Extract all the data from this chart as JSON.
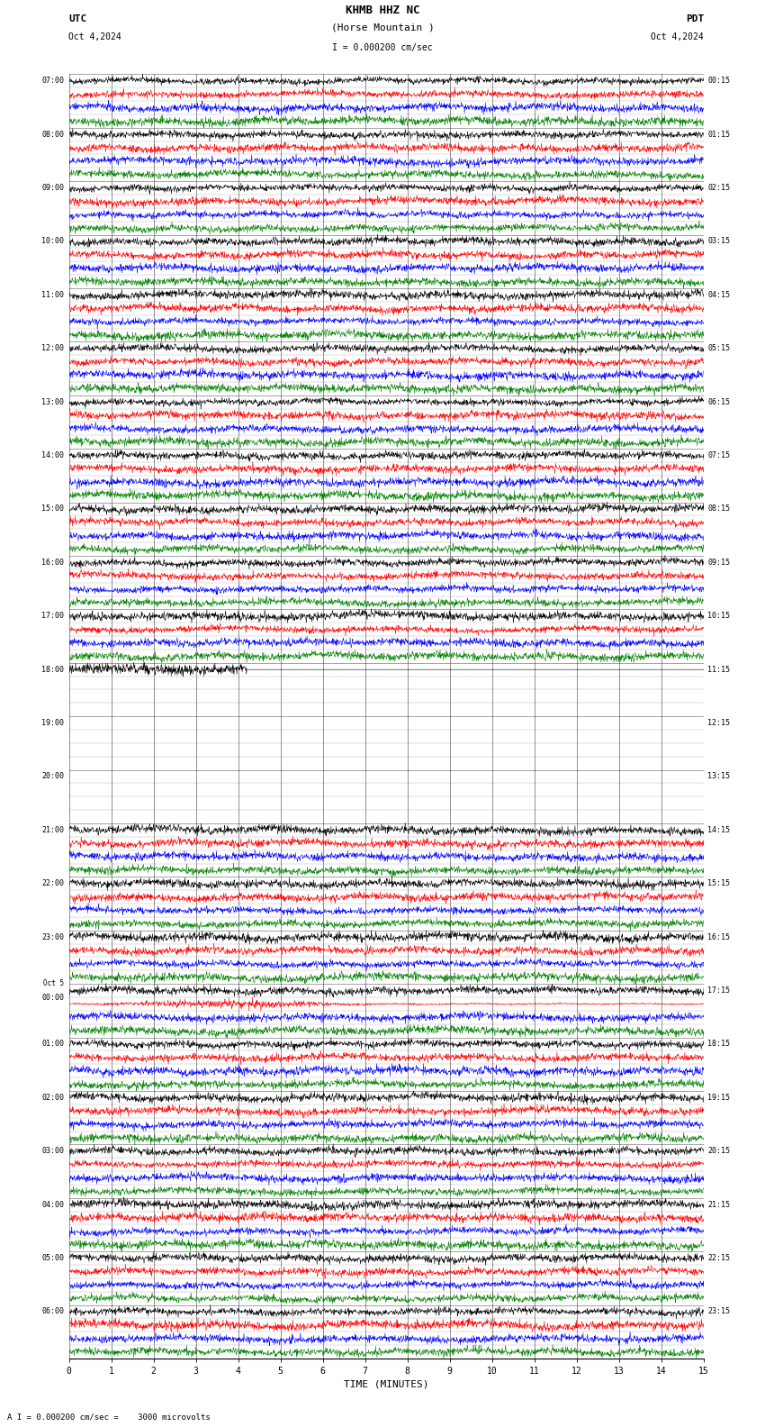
{
  "title_line1": "KHMB HHZ NC",
  "title_line2": "(Horse Mountain )",
  "scale_label": "I = 0.000200 cm/sec",
  "utc_label": "UTC",
  "date_left": "Oct 4,2024",
  "date_right": "Oct 4,2024",
  "pdt_label": "PDT",
  "xlabel": "TIME (MINUTES)",
  "bottom_label": "A I = 0.000200 cm/sec =    3000 microvolts",
  "xlim": [
    0,
    15
  ],
  "xticks": [
    0,
    1,
    2,
    3,
    4,
    5,
    6,
    7,
    8,
    9,
    10,
    11,
    12,
    13,
    14,
    15
  ],
  "bg_color": "#ffffff",
  "trace_colors": [
    "black",
    "red",
    "blue",
    "green"
  ],
  "fig_width": 8.5,
  "fig_height": 15.84,
  "dpi": 100,
  "left_times": [
    "07:00",
    "08:00",
    "09:00",
    "10:00",
    "11:00",
    "12:00",
    "13:00",
    "14:00",
    "15:00",
    "16:00",
    "17:00",
    "18:00",
    "19:00",
    "20:00",
    "21:00",
    "22:00",
    "23:00",
    "Oct 5\n00:00",
    "01:00",
    "02:00",
    "03:00",
    "04:00",
    "05:00",
    "06:00"
  ],
  "right_times": [
    "00:15",
    "01:15",
    "02:15",
    "03:15",
    "04:15",
    "05:15",
    "06:15",
    "07:15",
    "08:15",
    "09:15",
    "10:15",
    "11:15",
    "12:15",
    "13:15",
    "14:15",
    "15:15",
    "16:15",
    "17:15",
    "18:15",
    "19:15",
    "20:15",
    "21:15",
    "22:15",
    "23:15"
  ],
  "n_rows": 24,
  "traces_per_row": 4,
  "noise_seed": 42,
  "blank_rows": [
    11,
    12
  ],
  "partial_rows": {
    "11": 0.35
  },
  "event_rows": [
    17
  ],
  "event_col": 1
}
